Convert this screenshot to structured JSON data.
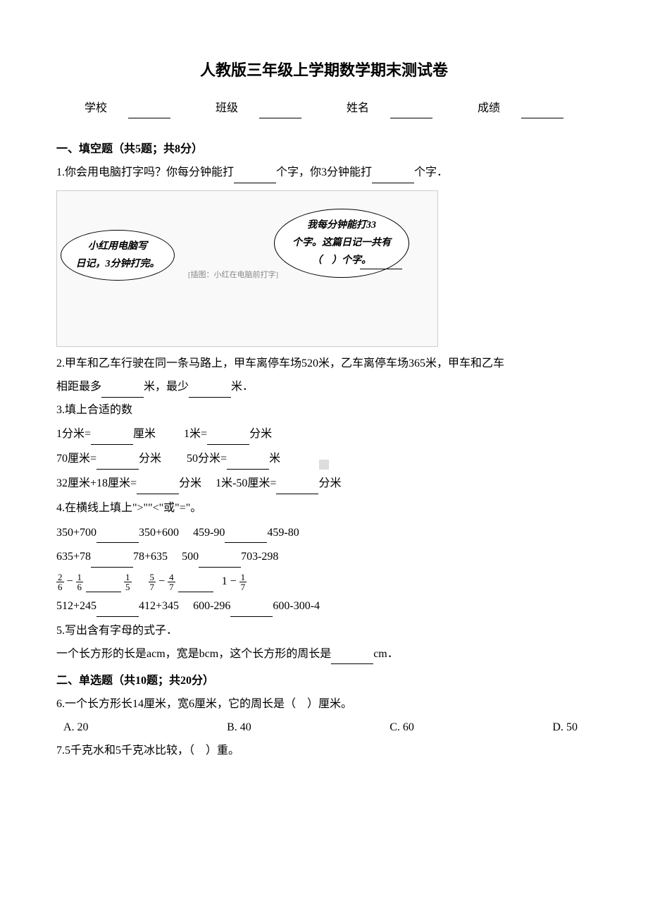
{
  "title": "人教版三年级上学期数学期末测试卷",
  "info": {
    "school_label": "学校",
    "class_label": "班级",
    "name_label": "姓名",
    "score_label": "成绩"
  },
  "section1": {
    "header": "一、填空题（共5题；共8分）",
    "q1_pre": "1.你会用电脑打字吗？你每分钟能打",
    "q1_mid": "个字，你3分钟能打",
    "q1_end": "个字．",
    "bubble_left_1": "小红用电脑写",
    "bubble_left_2": "日记，3分钟打完。",
    "bubble_right_1": "我每分钟能打33",
    "bubble_right_2": "个字。这篇日记一共有",
    "bubble_right_3": "（　）个字。",
    "figure_note": "[插图：小红在电脑前打字]",
    "q2_pre": "2.甲车和乙车行驶在同一条马路上，甲车离停车场520米，乙车离停车场365米，甲车和乙车",
    "q2_mid1": "相距最多",
    "q2_mid2": "米，最少",
    "q2_end": "米．",
    "q3_header": "3.填上合适的数",
    "q3_r1a_pre": "1分米=",
    "q3_r1a_post": "厘米",
    "q3_r1b_pre": "1米=",
    "q3_r1b_post": "分米",
    "q3_r2a_pre": "70厘米=",
    "q3_r2a_post": "分米",
    "q3_r2b_pre": "50分米=",
    "q3_r2b_post": "米",
    "q3_r3a_pre": "32厘米+18厘米=",
    "q3_r3a_post": "分米",
    "q3_r3b_pre": "1米-50厘米=",
    "q3_r3b_post": "分米",
    "q4_header": "4.在横线上填上\">\"\"<\"或\"=\"。",
    "q4_r1a": "350+700",
    "q4_r1b": "350+600",
    "q4_r1c": "459-90",
    "q4_r1d": "459-80",
    "q4_r2a": "635+78",
    "q4_r2b": "78+635",
    "q4_r2c": "500",
    "q4_r2d": "703-298",
    "q4_r3_end": "1 −",
    "q4_r4a": "512+245",
    "q4_r4b": "412+345",
    "q4_r4c": "600-296",
    "q4_r4d": "600-300-4",
    "q5_header": "5.写出含有字母的式子．",
    "q5_pre": "一个长方形的长是acm，宽是bcm，这个长方形的周长是",
    "q5_post": "cm．",
    "fractions": {
      "f1n": "2",
      "f1d": "6",
      "f2n": "1",
      "f2d": "6",
      "f3n": "1",
      "f3d": "5",
      "f4n": "5",
      "f4d": "7",
      "f5n": "4",
      "f5d": "7",
      "f6n": "1",
      "f6d": "7"
    }
  },
  "section2": {
    "header": "二、单选题（共10题；共20分）",
    "q6": "6.一个长方形长14厘米，宽6厘米，它的周长是（　）厘米。",
    "q6_opts": {
      "a": "A. 20",
      "b": "B. 40",
      "c": "C. 60",
      "d": "D. 50"
    },
    "q7": "7.5千克水和5千克冰比较，（　）重。"
  }
}
